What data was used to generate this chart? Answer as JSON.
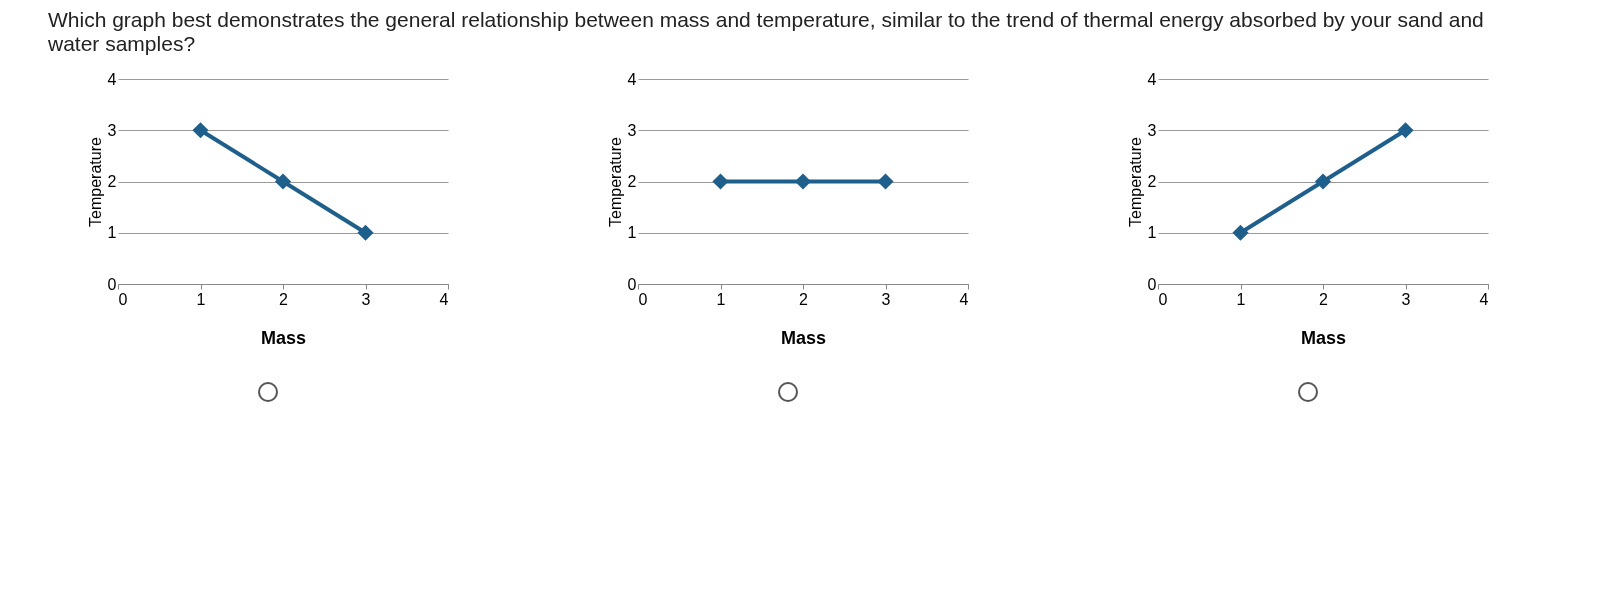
{
  "chart_data": [
    {
      "type": "line",
      "title": "Which graph best demonstrates the general relationship between mass and temperature, similar to the trend of thermal energy absorbed by your sand and water samples?",
      "xlabel": "Mass",
      "ylabel": "Temperature",
      "x": [
        1,
        2,
        3
      ],
      "series": [
        {
          "color": "#1f5f8b",
          "values": [
            3,
            2,
            1
          ]
        }
      ],
      "xlim": [
        0,
        4
      ],
      "ylim": [
        0,
        4
      ],
      "xticks": [
        0,
        1,
        2,
        3,
        4
      ],
      "yticks": [
        0,
        1,
        2,
        3,
        4
      ],
      "grid": "y",
      "marker": "diamond"
    },
    {
      "type": "line",
      "xlabel": "Mass",
      "ylabel": "Temperature",
      "x": [
        1,
        2,
        3
      ],
      "series": [
        {
          "color": "#1f5f8b",
          "values": [
            2,
            2,
            2
          ]
        }
      ],
      "xlim": [
        0,
        4
      ],
      "ylim": [
        0,
        4
      ],
      "xticks": [
        0,
        1,
        2,
        3,
        4
      ],
      "yticks": [
        0,
        1,
        2,
        3,
        4
      ],
      "grid": "y",
      "marker": "diamond"
    },
    {
      "type": "line",
      "xlabel": "Mass",
      "ylabel": "Temperature",
      "x": [
        1,
        2,
        3
      ],
      "series": [
        {
          "color": "#1f5f8b",
          "values": [
            1,
            2,
            3
          ]
        }
      ],
      "xlim": [
        0,
        4
      ],
      "ylim": [
        0,
        4
      ],
      "xticks": [
        0,
        1,
        2,
        3,
        4
      ],
      "yticks": [
        0,
        1,
        2,
        3,
        4
      ],
      "grid": "y",
      "marker": "diamond"
    }
  ]
}
